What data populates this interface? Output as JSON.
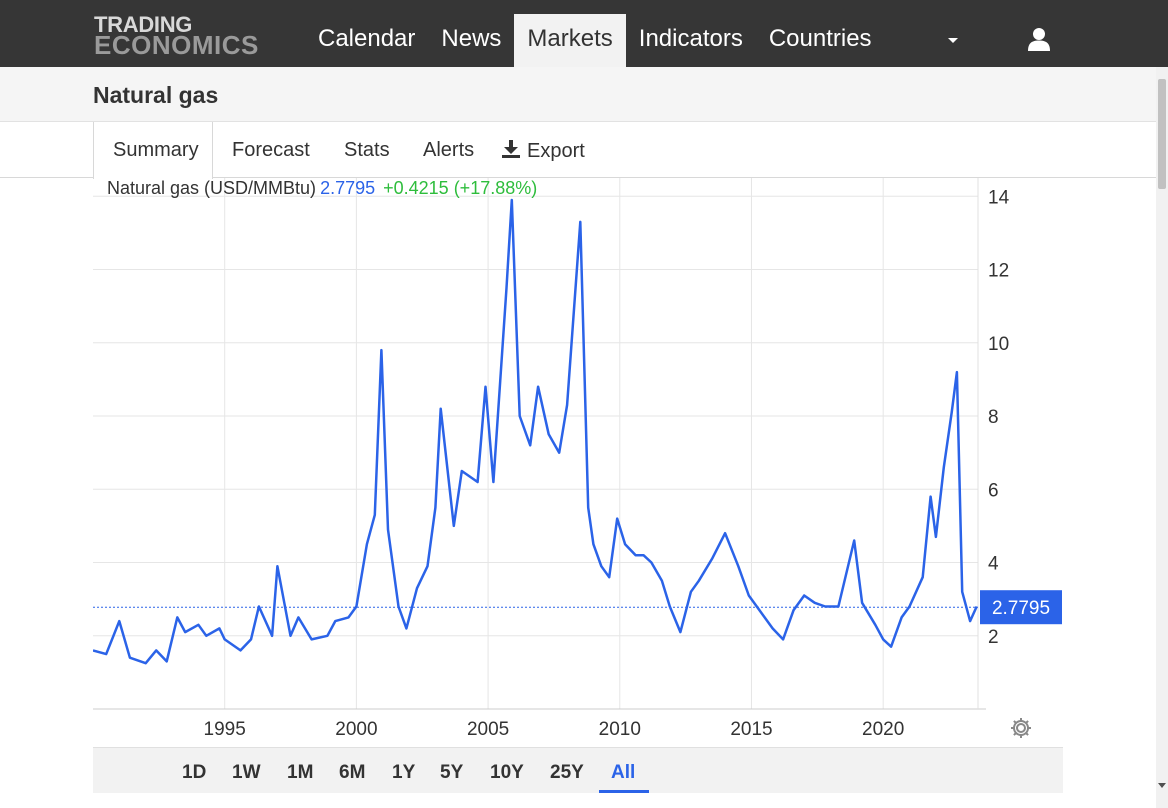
{
  "header": {
    "logo_line1": "TRADING",
    "logo_line2": "ECONOMICS",
    "nav": [
      {
        "label": "Calendar"
      },
      {
        "label": "News"
      },
      {
        "label": "Markets"
      },
      {
        "label": "Indicators"
      },
      {
        "label": "Countries"
      }
    ],
    "active_nav": "Markets"
  },
  "page": {
    "title": "Natural gas"
  },
  "tabs": [
    {
      "label": "Summary"
    },
    {
      "label": "Forecast"
    },
    {
      "label": "Stats"
    },
    {
      "label": "Alerts"
    },
    {
      "label": "Export"
    }
  ],
  "legend": {
    "name": "Natural gas (USD/MMBtu)",
    "value": "2.7795",
    "change": "+0.4215 (+17.88%)"
  },
  "ranges": [
    "1D",
    "1W",
    "1M",
    "6M",
    "1Y",
    "5Y",
    "10Y",
    "25Y",
    "All"
  ],
  "active_range": "All",
  "colors": {
    "series": "#2b63e8",
    "change_up": "#2ebd3c",
    "header_bg": "#363636"
  },
  "icons": {
    "user": "user-icon",
    "export": "download-icon",
    "settings": "gear-icon",
    "menu": "caret-down-icon"
  },
  "chart_data": {
    "type": "line",
    "title": "",
    "xlabel": "",
    "ylabel": "",
    "ylim": [
      0,
      14.5
    ],
    "xlim": [
      1990.0,
      2023.6
    ],
    "x_ticks": [
      1995,
      2000,
      2005,
      2010,
      2015,
      2020
    ],
    "y_ticks": [
      2,
      4,
      6,
      8,
      10,
      12,
      14
    ],
    "grid": true,
    "current_value": 2.7795,
    "current_label": "2.7795",
    "series": [
      {
        "name": "Natural gas (USD/MMBtu)",
        "x": [
          1990.0,
          1990.5,
          1991.0,
          1991.4,
          1992.0,
          1992.4,
          1992.8,
          1993.2,
          1993.5,
          1994.0,
          1994.3,
          1994.8,
          1995.0,
          1995.6,
          1996.0,
          1996.3,
          1996.8,
          1997.0,
          1997.5,
          1997.8,
          1998.3,
          1998.9,
          1999.2,
          1999.7,
          2000.0,
          2000.4,
          2000.7,
          2000.95,
          2001.2,
          2001.6,
          2001.9,
          2002.3,
          2002.7,
          2003.0,
          2003.2,
          2003.7,
          2004.0,
          2004.6,
          2004.9,
          2005.2,
          2005.7,
          2005.9,
          2006.2,
          2006.6,
          2006.9,
          2007.3,
          2007.7,
          2008.0,
          2008.5,
          2008.8,
          2009.0,
          2009.3,
          2009.6,
          2009.9,
          2010.2,
          2010.6,
          2010.9,
          2011.2,
          2011.6,
          2011.9,
          2012.3,
          2012.7,
          2013.0,
          2013.5,
          2014.0,
          2014.5,
          2014.9,
          2015.3,
          2015.8,
          2016.2,
          2016.6,
          2017.0,
          2017.4,
          2017.8,
          2018.3,
          2018.9,
          2019.2,
          2019.7,
          2020.0,
          2020.3,
          2020.7,
          2021.0,
          2021.5,
          2021.8,
          2022.0,
          2022.3,
          2022.6,
          2022.8,
          2023.0,
          2023.3,
          2023.55
        ],
        "y": [
          1.6,
          1.5,
          2.4,
          1.4,
          1.25,
          1.6,
          1.3,
          2.5,
          2.1,
          2.3,
          2.0,
          2.2,
          1.9,
          1.6,
          1.9,
          2.8,
          2.0,
          3.9,
          2.0,
          2.5,
          1.9,
          2.0,
          2.4,
          2.5,
          2.8,
          4.5,
          5.3,
          9.8,
          4.9,
          2.8,
          2.2,
          3.3,
          3.9,
          5.5,
          8.2,
          5.0,
          6.5,
          6.2,
          8.8,
          6.2,
          11.5,
          13.9,
          8.0,
          7.2,
          8.8,
          7.5,
          7.0,
          8.3,
          13.3,
          5.5,
          4.5,
          3.9,
          3.6,
          5.2,
          4.5,
          4.2,
          4.2,
          4.0,
          3.5,
          2.8,
          2.1,
          3.2,
          3.5,
          4.1,
          4.8,
          3.9,
          3.1,
          2.7,
          2.2,
          1.9,
          2.7,
          3.1,
          2.9,
          2.8,
          2.8,
          4.6,
          2.9,
          2.3,
          1.9,
          1.7,
          2.5,
          2.8,
          3.6,
          5.8,
          4.7,
          6.6,
          8.1,
          9.2,
          3.2,
          2.4,
          2.8
        ]
      }
    ]
  }
}
